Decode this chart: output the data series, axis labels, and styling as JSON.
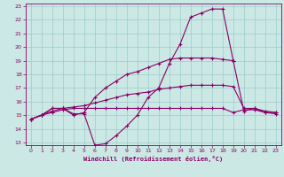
{
  "xlabel": "Windchill (Refroidissement éolien,°C)",
  "background_color": "#cce8e4",
  "grid_color": "#99cccc",
  "line_color": "#880066",
  "xlim": [
    -0.5,
    23.5
  ],
  "ylim": [
    12.8,
    23.2
  ],
  "xticks": [
    0,
    1,
    2,
    3,
    4,
    5,
    6,
    7,
    8,
    9,
    10,
    11,
    12,
    13,
    14,
    15,
    16,
    17,
    18,
    19,
    20,
    21,
    22,
    23
  ],
  "yticks": [
    13,
    14,
    15,
    16,
    17,
    18,
    19,
    20,
    21,
    22,
    23
  ],
  "line1_x": [
    0,
    1,
    2,
    3,
    4,
    5,
    6,
    7,
    8,
    9,
    10,
    11,
    12,
    13,
    14,
    15,
    16,
    17,
    18,
    19,
    20,
    21,
    22,
    23
  ],
  "line1_y": [
    14.7,
    15.0,
    15.5,
    15.5,
    15.1,
    15.1,
    12.8,
    12.9,
    13.5,
    14.2,
    15.0,
    16.3,
    17.0,
    18.8,
    20.2,
    22.2,
    22.5,
    22.8,
    22.8,
    19.0,
    15.3,
    15.5,
    15.3,
    15.2
  ],
  "line2_x": [
    0,
    1,
    2,
    3,
    4,
    5,
    6,
    7,
    8,
    9,
    10,
    11,
    12,
    13,
    14,
    15,
    16,
    17,
    18,
    19
  ],
  "line2_y": [
    14.7,
    15.0,
    15.5,
    15.5,
    15.0,
    15.2,
    16.3,
    17.0,
    17.5,
    18.0,
    18.2,
    18.5,
    18.8,
    19.1,
    19.2,
    19.2,
    19.2,
    19.2,
    19.1,
    19.0
  ],
  "line3_x": [
    0,
    1,
    2,
    3,
    4,
    5,
    6,
    7,
    8,
    9,
    10,
    11,
    12,
    13,
    14,
    15,
    16,
    17,
    18,
    19,
    20,
    21,
    22,
    23
  ],
  "line3_y": [
    14.7,
    15.0,
    15.2,
    15.4,
    15.5,
    15.5,
    15.5,
    15.5,
    15.5,
    15.5,
    15.5,
    15.5,
    15.5,
    15.5,
    15.5,
    15.5,
    15.5,
    15.5,
    15.5,
    15.2,
    15.4,
    15.4,
    15.2,
    15.1
  ],
  "line4_x": [
    0,
    1,
    2,
    3,
    4,
    5,
    6,
    7,
    8,
    9,
    10,
    11,
    12,
    13,
    14,
    15,
    16,
    17,
    18,
    19,
    20,
    21,
    22,
    23
  ],
  "line4_y": [
    14.7,
    15.0,
    15.3,
    15.5,
    15.6,
    15.7,
    15.9,
    16.1,
    16.3,
    16.5,
    16.6,
    16.7,
    16.9,
    17.0,
    17.1,
    17.2,
    17.2,
    17.2,
    17.2,
    17.1,
    15.5,
    15.5,
    15.2,
    15.2
  ]
}
